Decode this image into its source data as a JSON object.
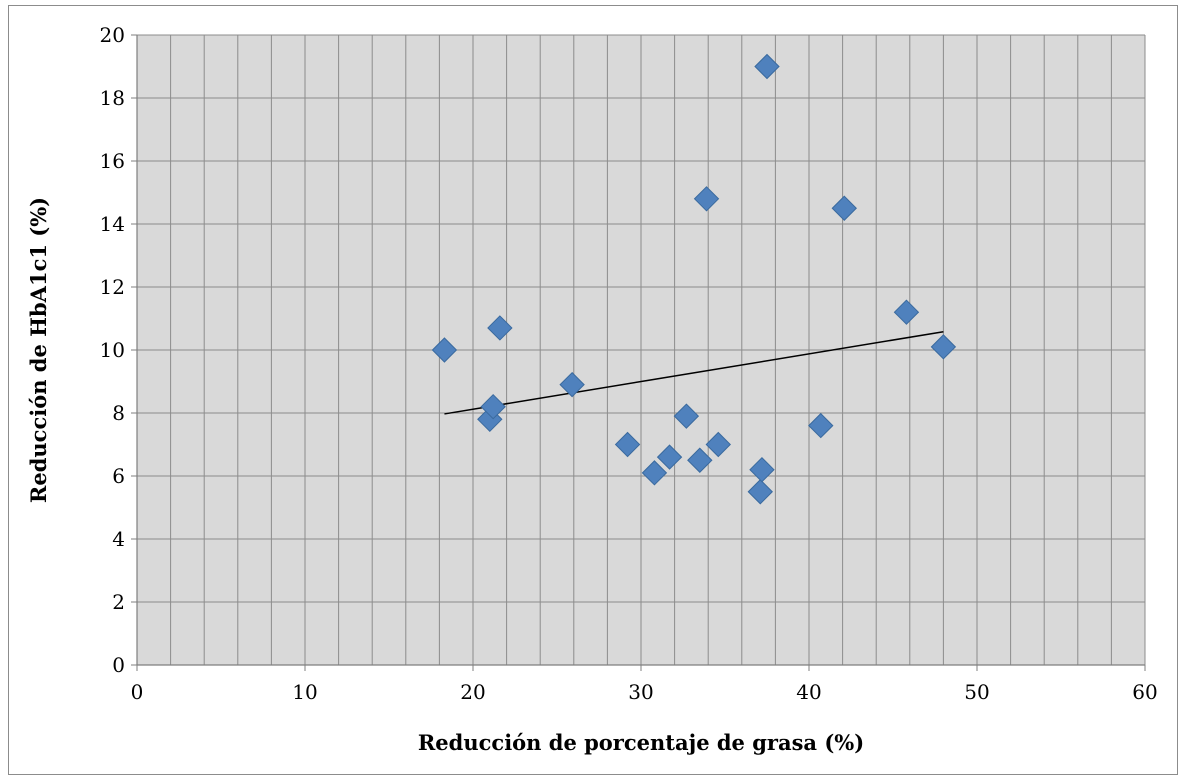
{
  "chart_data": {
    "type": "scatter",
    "title": "",
    "xlabel": "Reducción de porcentaje de grasa (%)",
    "ylabel": "Reducción de HbA1c1 (%)",
    "xlim": [
      0,
      60
    ],
    "ylim": [
      0,
      20
    ],
    "x_ticks": [
      "0",
      "10",
      "20",
      "30",
      "40",
      "50",
      "60"
    ],
    "y_ticks": [
      "0",
      "2",
      "4",
      "6",
      "8",
      "10",
      "12",
      "14",
      "16",
      "18",
      "20"
    ],
    "grid": true,
    "legend": "none",
    "marker": "diamond",
    "colors": {
      "marker": "#4F81BD",
      "marker_edge": "#3A6A9E",
      "plot_background": "#D9D9D9",
      "grid": "#8C8C8C",
      "trendline": "#000000"
    },
    "points": [
      {
        "x": 18.3,
        "y": 10.0
      },
      {
        "x": 21.0,
        "y": 7.8
      },
      {
        "x": 21.2,
        "y": 8.2
      },
      {
        "x": 21.6,
        "y": 10.7
      },
      {
        "x": 25.9,
        "y": 8.9
      },
      {
        "x": 29.2,
        "y": 7.0
      },
      {
        "x": 30.8,
        "y": 6.1
      },
      {
        "x": 31.7,
        "y": 6.6
      },
      {
        "x": 32.7,
        "y": 7.9
      },
      {
        "x": 33.5,
        "y": 6.5
      },
      {
        "x": 33.9,
        "y": 14.8
      },
      {
        "x": 34.6,
        "y": 7.0
      },
      {
        "x": 37.1,
        "y": 5.5
      },
      {
        "x": 37.2,
        "y": 6.2
      },
      {
        "x": 37.5,
        "y": 19.0
      },
      {
        "x": 40.7,
        "y": 7.6
      },
      {
        "x": 42.1,
        "y": 14.5
      },
      {
        "x": 45.8,
        "y": 11.2
      },
      {
        "x": 48.0,
        "y": 10.1
      }
    ],
    "trendline": {
      "type": "linear",
      "x": [
        18.3,
        48.0
      ],
      "y": [
        7.97,
        10.58
      ]
    }
  }
}
